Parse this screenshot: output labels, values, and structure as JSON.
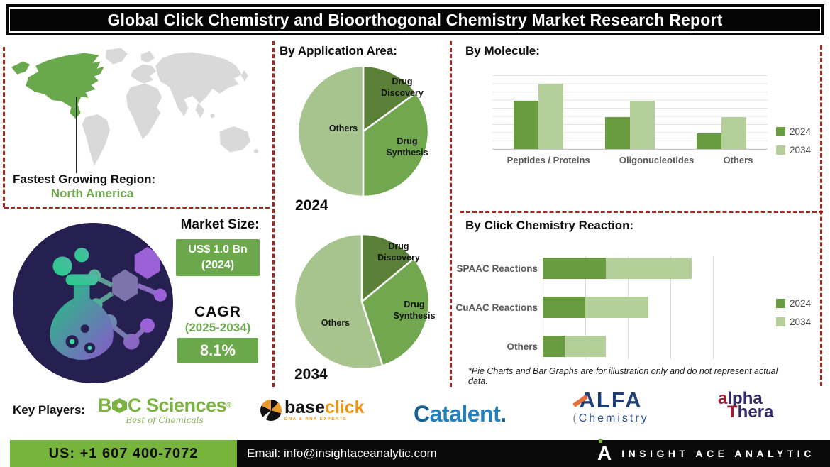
{
  "title": "Global Click Chemistry and Bioorthogonal Chemistry Market Research Report",
  "region": {
    "heading": "Fastest Growing Region:",
    "value": "North America"
  },
  "market_size": {
    "heading": "Market Size:",
    "value_line1": "US$ 1.0 Bn",
    "value_line2": "(2024)",
    "cagr_label": "CAGR",
    "cagr_period": "(2025-2034)",
    "cagr_value": "8.1%"
  },
  "sections": {
    "application": "By Application Area:",
    "molecule": "By Molecule:",
    "reaction": "By Click Chemistry Reaction:"
  },
  "footnote": "*Pie Charts and Bar Graphs are for illustration only and do not represent actual data.",
  "key_players": {
    "heading": "Key Players:",
    "boc": {
      "b": "B",
      "rest": "C Sciences",
      "reg": "®",
      "tagline": "Best of Chemicals"
    },
    "baseclick": {
      "base": "base",
      "click": "click",
      "tagline": "DNA & RNA EXPERTS"
    },
    "catalent": {
      "c": "C",
      "rest": "atalent",
      "dot": "."
    },
    "alfa": {
      "line1": "ALFA",
      "paren": "(",
      "line2": "Chemistry"
    },
    "alphathera": {
      "accent1": "a",
      "line1": "lpha",
      "accent2": "T",
      "line2": "hera"
    }
  },
  "contact": {
    "phone": "US: +1 607 400-7072",
    "email": "Email: info@insightaceanalytic.com",
    "brand_mark": "A",
    "brand": "INSIGHT ACE ANALYTIC"
  },
  "colors": {
    "dashed_divider": "#9f2a25",
    "map_land": "#d9d9d9",
    "map_highlight": "#6aa84d",
    "badge_green": "#6ba74b",
    "accent_green_text": "#6faa50",
    "bottom_green": "#76b43c",
    "navy_circle": "#262051",
    "series_2024": "#699c41",
    "series_2034": "#b5cf9a",
    "pie_dark": "#5a8038",
    "pie_medium": "#71a74f",
    "pie_light": "#a7c48f"
  },
  "chart_data": [
    {
      "type": "pie",
      "title": "By Application Area: 2024",
      "year": "2024",
      "slices": [
        {
          "label": "Drug Discovery",
          "value_pct": 15,
          "color": "#5a8038"
        },
        {
          "label": "Drug Synthesis",
          "value_pct": 35,
          "color": "#71a74f"
        },
        {
          "label": "Others",
          "value_pct": 50,
          "color": "#a7c48f"
        }
      ],
      "legend_position": "labels-on-slices",
      "note": "illustration only, per footnote"
    },
    {
      "type": "pie",
      "title": "By Application Area: 2034",
      "year": "2034",
      "slices": [
        {
          "label": "Drug Discovery",
          "value_pct": 14,
          "color": "#5a8038"
        },
        {
          "label": "Drug Synthesis",
          "value_pct": 31,
          "color": "#71a74f"
        },
        {
          "label": "Others",
          "value_pct": 55,
          "color": "#a7c48f"
        }
      ],
      "legend_position": "labels-on-slices",
      "note": "illustration only, per footnote"
    },
    {
      "type": "bar",
      "title": "By Molecule:",
      "categories": [
        "Peptides / Proteins",
        "Oligonucleotides",
        "Others"
      ],
      "series": [
        {
          "name": "2024",
          "color": "#699c41",
          "values_pct_of_axis": [
            65,
            43,
            21
          ]
        },
        {
          "name": "2034",
          "color": "#b5cf9a",
          "values_pct_of_axis": [
            88,
            65,
            43
          ]
        }
      ],
      "ylim": [
        0,
        100
      ],
      "grid": true,
      "value_axis_labels": false,
      "legend_position": "right",
      "note": "illustration only, per footnote"
    },
    {
      "type": "stacked-hbar",
      "title": "By Click Chemistry Reaction:",
      "categories": [
        "SPAAC Reactions",
        "CuAAC Reactions",
        "Others"
      ],
      "series": [
        {
          "name": "2024",
          "color": "#699c41",
          "values_pct_of_axis": [
            37,
            25,
            13
          ]
        },
        {
          "name": "2034",
          "color": "#b5cf9a",
          "values_pct_of_axis": [
            50,
            37,
            24
          ]
        }
      ],
      "xlim": [
        0,
        100
      ],
      "grid": true,
      "value_axis_labels": false,
      "legend_position": "right",
      "note": "illustration only, per footnote"
    }
  ]
}
